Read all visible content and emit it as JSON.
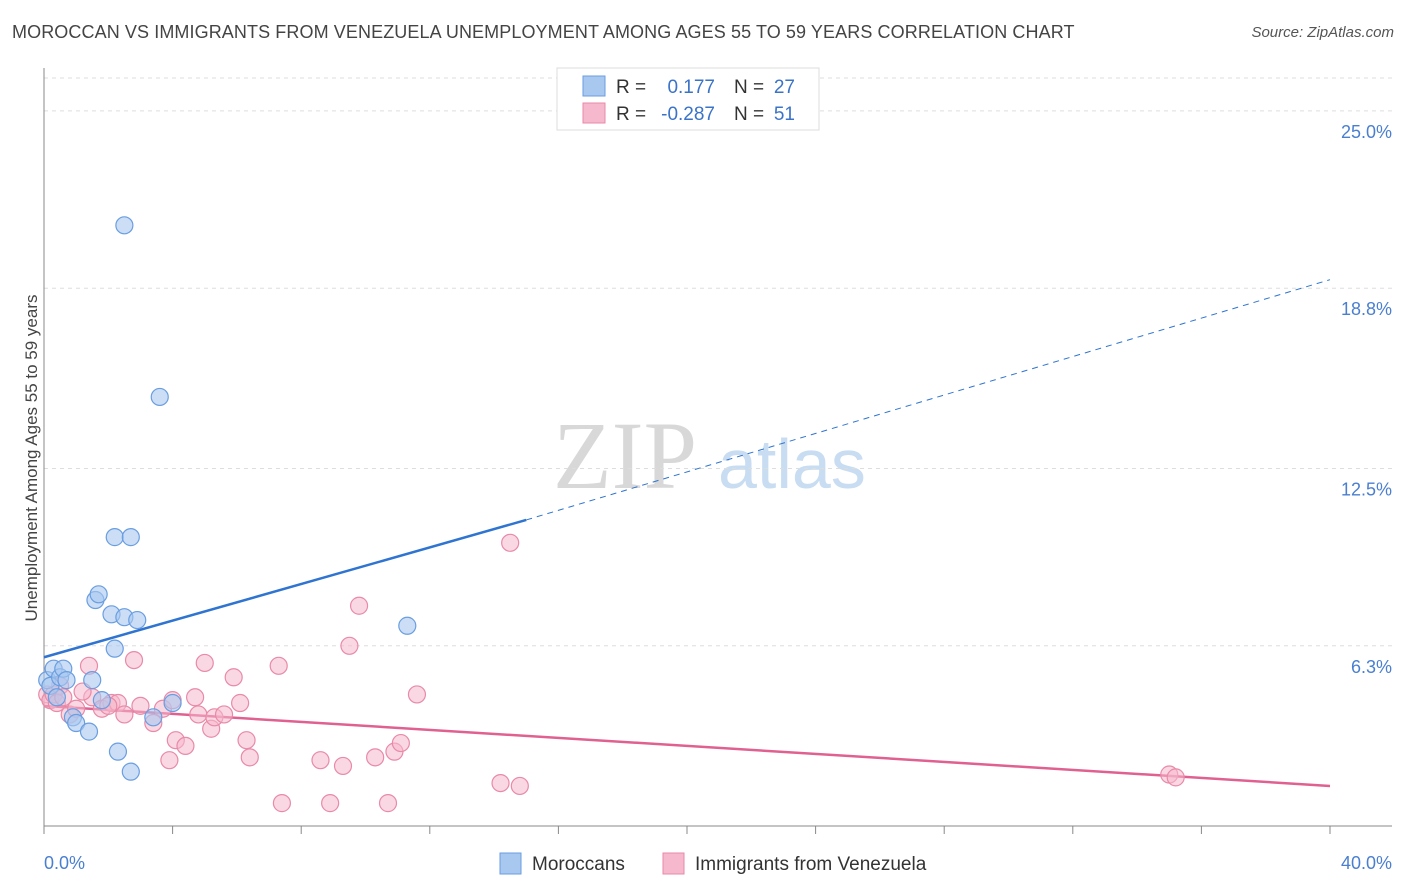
{
  "title": "MOROCCAN VS IMMIGRANTS FROM VENEZUELA UNEMPLOYMENT AMONG AGES 55 TO 59 YEARS CORRELATION CHART",
  "source": "Source: ZipAtlas.com",
  "watermark": {
    "zip": "ZIP",
    "atlas": "atlas"
  },
  "colors": {
    "blue_fill": "#a8c8f0",
    "blue_stroke": "#6a9ee0",
    "blue_line": "#2e74d0",
    "pink_fill": "#f5b8cc",
    "pink_stroke": "#e88aa8",
    "pink_line": "#e06090",
    "axis_label": "#4a7fd0",
    "grid": "#dddddd"
  },
  "legend": {
    "rows": [
      {
        "r_label": "R =",
        "r_value": "0.177",
        "n_label": "N =",
        "n_value": "27"
      },
      {
        "r_label": "R =",
        "r_value": "-0.287",
        "n_label": "N =",
        "n_value": "51"
      }
    ]
  },
  "bottom_legend": {
    "series1": "Moroccans",
    "series2": "Immigrants from Venezuela"
  },
  "chart_data": {
    "type": "scatter",
    "title": "MOROCCAN VS IMMIGRANTS FROM VENEZUELA UNEMPLOYMENT AMONG AGES 55 TO 59 YEARS CORRELATION CHART",
    "xlabel": "",
    "ylabel": "Unemployment Among Ages 55 to 59 years",
    "xlim": [
      0,
      40
    ],
    "ylim": [
      0,
      26.5
    ],
    "x_tick_labels": [
      "0.0%",
      "40.0%"
    ],
    "y_ticks": [
      6.3,
      12.5,
      18.8,
      25.0
    ],
    "y_tick_labels": [
      "6.3%",
      "12.5%",
      "18.8%",
      "25.0%"
    ],
    "grid": true,
    "series": [
      {
        "name": "Moroccans",
        "points": [
          [
            0.1,
            5.1
          ],
          [
            0.2,
            4.9
          ],
          [
            0.3,
            5.5
          ],
          [
            0.5,
            5.2
          ],
          [
            0.6,
            5.5
          ],
          [
            0.7,
            5.1
          ],
          [
            0.9,
            3.8
          ],
          [
            1.0,
            3.6
          ],
          [
            1.4,
            3.3
          ],
          [
            1.5,
            5.1
          ],
          [
            1.6,
            7.9
          ],
          [
            1.7,
            8.1
          ],
          [
            1.8,
            4.4
          ],
          [
            2.1,
            7.4
          ],
          [
            2.2,
            10.1
          ],
          [
            2.2,
            6.2
          ],
          [
            2.3,
            2.6
          ],
          [
            2.5,
            7.3
          ],
          [
            2.5,
            21.0
          ],
          [
            2.7,
            1.9
          ],
          [
            2.7,
            10.1
          ],
          [
            2.9,
            7.2
          ],
          [
            3.4,
            3.8
          ],
          [
            3.6,
            15.0
          ],
          [
            4.0,
            4.3
          ],
          [
            11.3,
            7.0
          ],
          [
            0.4,
            4.5
          ]
        ],
        "trend": {
          "x0": 0,
          "y0": 5.9,
          "x1": 15.0,
          "y1": 10.7,
          "x_dash_end": 40,
          "y_dash_end": 19.1
        }
      },
      {
        "name": "Immigrants from Venezuela",
        "points": [
          [
            0.1,
            4.6
          ],
          [
            0.2,
            4.4
          ],
          [
            0.3,
            4.6
          ],
          [
            0.4,
            4.3
          ],
          [
            0.5,
            4.9
          ],
          [
            0.8,
            3.9
          ],
          [
            1.0,
            4.1
          ],
          [
            1.4,
            5.6
          ],
          [
            1.5,
            4.5
          ],
          [
            1.8,
            4.1
          ],
          [
            2.1,
            4.3
          ],
          [
            2.3,
            4.3
          ],
          [
            2.5,
            3.9
          ],
          [
            2.8,
            5.8
          ],
          [
            3.0,
            4.2
          ],
          [
            3.4,
            3.6
          ],
          [
            3.7,
            4.1
          ],
          [
            3.9,
            2.3
          ],
          [
            4.0,
            4.4
          ],
          [
            4.1,
            3.0
          ],
          [
            4.4,
            2.8
          ],
          [
            4.7,
            4.5
          ],
          [
            4.8,
            3.9
          ],
          [
            5.0,
            5.7
          ],
          [
            5.2,
            3.4
          ],
          [
            5.3,
            3.8
          ],
          [
            5.6,
            3.9
          ],
          [
            5.9,
            5.2
          ],
          [
            6.1,
            4.3
          ],
          [
            6.3,
            3.0
          ],
          [
            6.4,
            2.4
          ],
          [
            7.3,
            5.6
          ],
          [
            7.4,
            0.8
          ],
          [
            8.6,
            2.3
          ],
          [
            8.9,
            0.8
          ],
          [
            9.3,
            2.1
          ],
          [
            9.5,
            6.3
          ],
          [
            9.8,
            7.7
          ],
          [
            10.3,
            2.4
          ],
          [
            10.7,
            0.8
          ],
          [
            10.9,
            2.6
          ],
          [
            11.1,
            2.9
          ],
          [
            11.6,
            4.6
          ],
          [
            14.2,
            1.5
          ],
          [
            14.5,
            9.9
          ],
          [
            14.8,
            1.4
          ],
          [
            35.0,
            1.8
          ],
          [
            35.2,
            1.7
          ],
          [
            0.6,
            4.5
          ],
          [
            1.2,
            4.7
          ],
          [
            2.0,
            4.2
          ]
        ],
        "trend": {
          "x0": 0,
          "y0": 4.2,
          "x1": 40,
          "y1": 1.4
        }
      }
    ]
  }
}
